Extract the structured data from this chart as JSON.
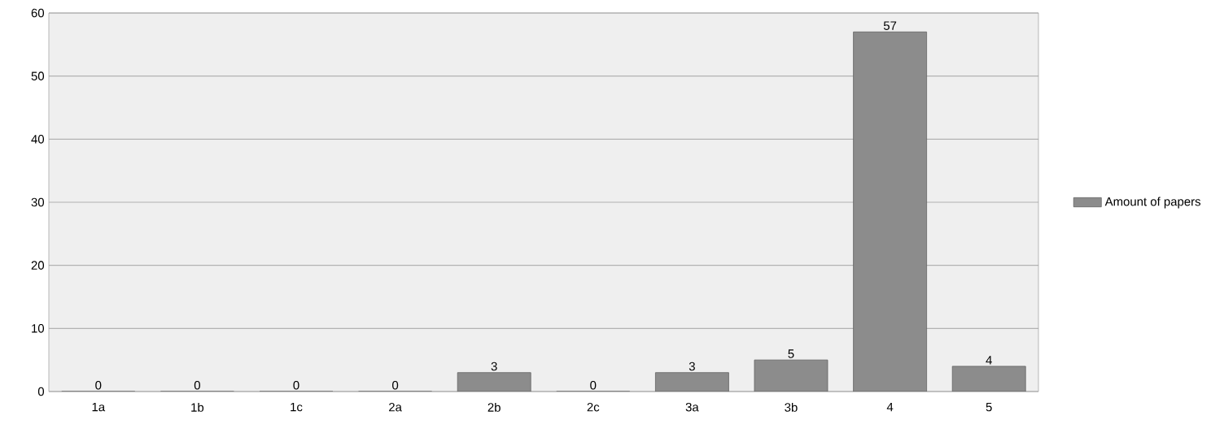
{
  "chart_data": {
    "type": "bar",
    "categories": [
      "1a",
      "1b",
      "1c",
      "2a",
      "2b",
      "2c",
      "3a",
      "3b",
      "4",
      "5"
    ],
    "series": [
      {
        "name": "Amount of papers",
        "color": "#8c8c8c",
        "values": [
          0,
          0,
          0,
          0,
          3,
          0,
          3,
          5,
          57,
          4
        ]
      }
    ],
    "ylim": [
      0,
      60
    ],
    "yticks": [
      0,
      10,
      20,
      30,
      40,
      50,
      60
    ],
    "grid": "y",
    "legend": "right",
    "data_labels": true
  }
}
